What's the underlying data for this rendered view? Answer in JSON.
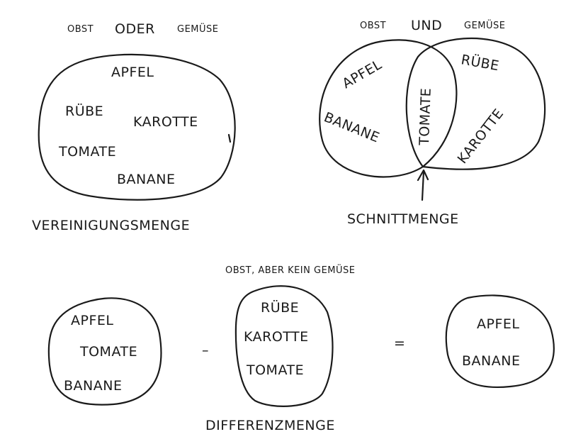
{
  "union": {
    "caption_left": "OBST",
    "caption_mid": "ODER",
    "caption_right": "GEMÜSE",
    "items": [
      "APFEL",
      "RÜBE",
      "KAROTTE",
      "TOMATE",
      "BANANE"
    ],
    "label": "VEREINIGUNGSMENGE"
  },
  "intersection": {
    "caption_left": "OBST",
    "caption_mid": "UND",
    "caption_right": "GEMÜSE",
    "left_items": [
      "APFEL",
      "BANANE"
    ],
    "middle_item": "TOMATE",
    "right_items": [
      "RÜBE",
      "KAROTTE"
    ],
    "label": "SCHNITTMENGE"
  },
  "difference": {
    "caption": "OBST, ABER KEIN GEMÜSE",
    "set_a": [
      "APFEL",
      "TOMATE",
      "BANANE"
    ],
    "operator_minus": "–",
    "set_b": [
      "RÜBE",
      "KAROTTE",
      "TOMATE"
    ],
    "operator_equals": "=",
    "result": [
      "APFEL",
      "BANANE"
    ],
    "label": "DIFFERENZMENGE"
  }
}
